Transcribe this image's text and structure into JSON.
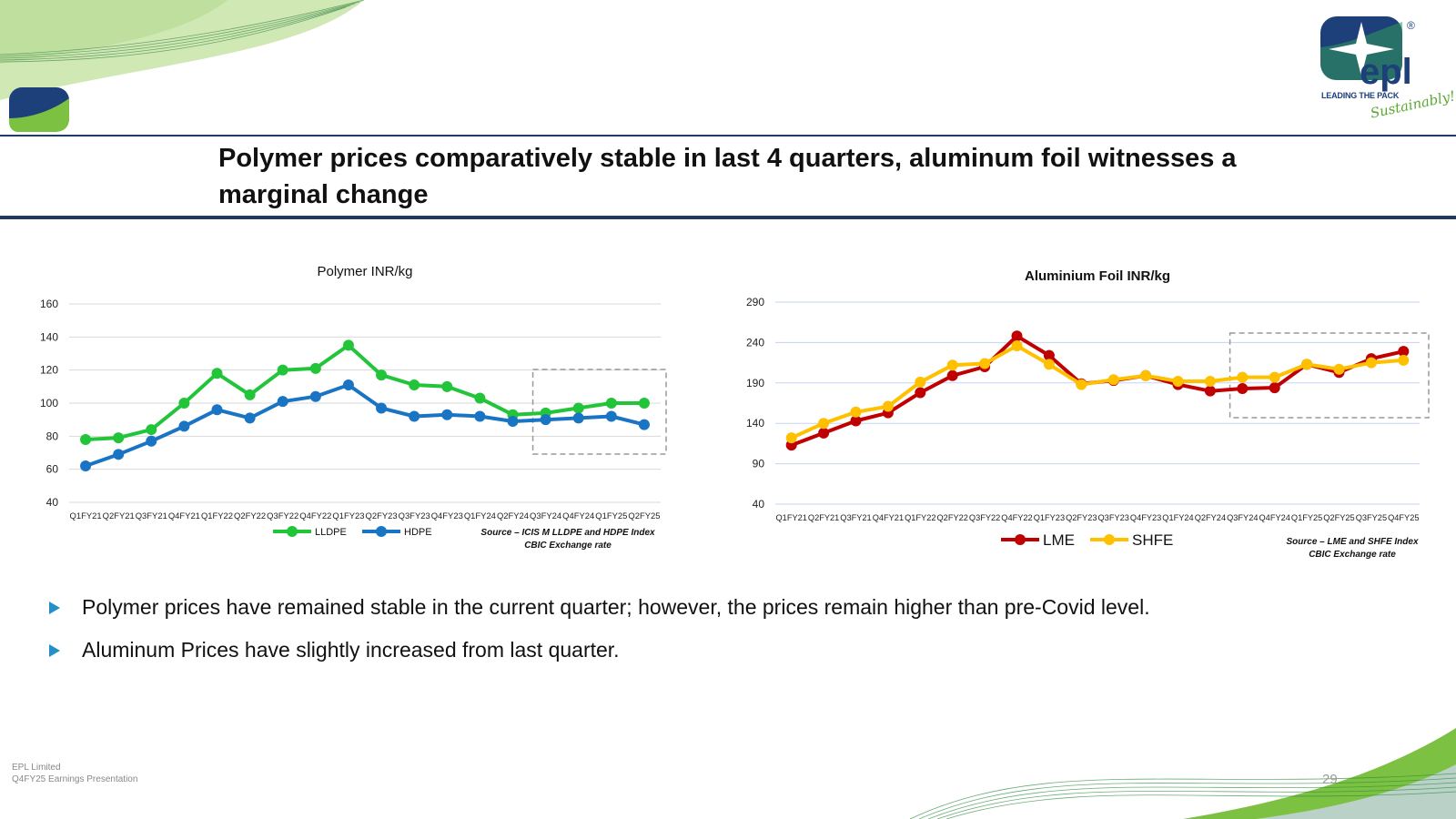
{
  "brand": {
    "tagline": "LEADING THE PACK",
    "script": "Sustainably!",
    "registered": "®",
    "wordmark": "epl",
    "colors": {
      "navy": "#1d3f7a",
      "green": "#7cc142",
      "rule": "#1f3b63"
    }
  },
  "slide": {
    "title_line1": "Polymer prices comparatively stable in last 4 quarters, aluminum foil witnesses a",
    "title_line2": "marginal change",
    "bullets": [
      "Polymer prices have remained stable in the current quarter; however, the prices remain higher than pre-Covid level.",
      "Aluminum Prices have slightly increased from last quarter."
    ],
    "footer_company": "EPL Limited",
    "footer_sub": "Q4FY25 Earnings Presentation",
    "page_number": "29"
  },
  "chart_data": [
    {
      "type": "line",
      "title": "Polymer INR/kg",
      "categories": [
        "Q1FY21",
        "Q2FY21",
        "Q3FY21",
        "Q4FY21",
        "Q1FY22",
        "Q2FY22",
        "Q3FY22",
        "Q4FY22",
        "Q1FY23",
        "Q2FY23",
        "Q3FY23",
        "Q4FY23",
        "Q1FY24",
        "Q2FY24",
        "Q3FY24",
        "Q4FY24",
        "Q1FY25",
        "Q2FY25"
      ],
      "series": [
        {
          "name": "LLDPE",
          "color": "#22c43a",
          "values": [
            78,
            79,
            84,
            100,
            118,
            105,
            120,
            121,
            135,
            117,
            111,
            110,
            103,
            93,
            94,
            97,
            100,
            100
          ]
        },
        {
          "name": "HDPE",
          "color": "#1a74c4",
          "values": [
            62,
            69,
            77,
            86,
            96,
            91,
            101,
            104,
            111,
            97,
            92,
            93,
            92,
            89,
            90,
            91,
            92,
            87
          ]
        }
      ],
      "ylim": [
        40,
        160
      ],
      "yticks": [
        40,
        60,
        80,
        100,
        120,
        140,
        160
      ],
      "legend": "bottom",
      "grid": true,
      "highlight_last_quarters": 4,
      "source_line1": "Source – ICIS M LLDPE and HDPE Index",
      "source_line2": "CBIC Exchange rate"
    },
    {
      "type": "line",
      "title": "Aluminium Foil INR/kg",
      "categories": [
        "Q1FY21",
        "Q2FY21",
        "Q3FY21",
        "Q4FY21",
        "Q1FY22",
        "Q2FY22",
        "Q3FY22",
        "Q4FY22",
        "Q1FY23",
        "Q2FY23",
        "Q3FY23",
        "Q4FY23",
        "Q1FY24",
        "Q2FY24",
        "Q3FY24",
        "Q4FY24",
        "Q1FY25",
        "Q2FY25",
        "Q3FY25",
        "Q4FY25"
      ],
      "series": [
        {
          "name": "LME",
          "color": "#c00000",
          "values": [
            113,
            128,
            143,
            153,
            178,
            199,
            210,
            248,
            224,
            189,
            193,
            199,
            188,
            180,
            183,
            184,
            213,
            203,
            220,
            229
          ]
        },
        {
          "name": "SHFE",
          "color": "#ffc000",
          "values": [
            122,
            140,
            154,
            161,
            191,
            212,
            214,
            236,
            213,
            188,
            194,
            199,
            192,
            192,
            197,
            197,
            213,
            207,
            215,
            218
          ]
        }
      ],
      "ylim": [
        40,
        290
      ],
      "yticks": [
        40,
        90,
        140,
        190,
        240,
        290
      ],
      "legend": "bottom",
      "grid": true,
      "highlight_last_quarters": 6,
      "source_line1": "Source – LME and SHFE Index",
      "source_line2": "CBIC Exchange rate"
    }
  ]
}
